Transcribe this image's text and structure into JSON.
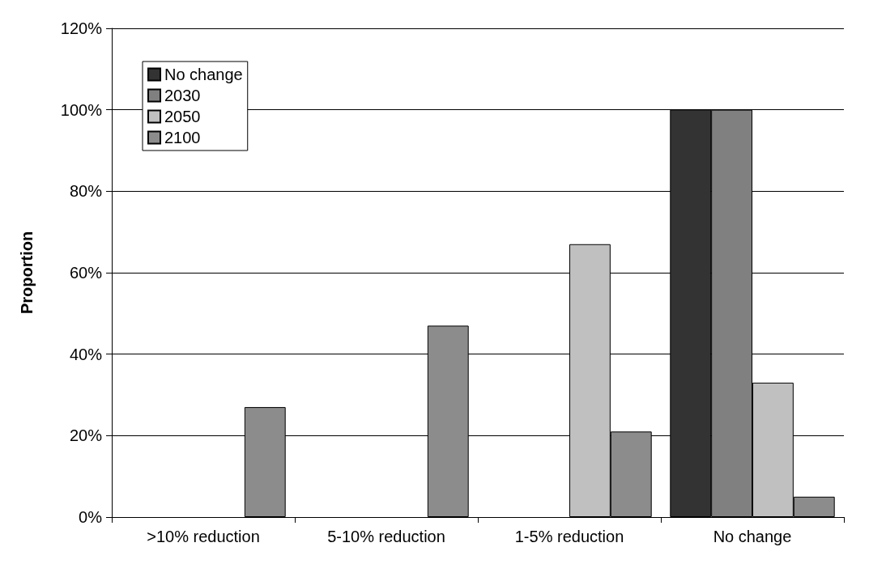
{
  "chart_data": {
    "type": "bar",
    "ylabel": "Proportion",
    "categories": [
      ">10% reduction",
      "5-10% reduction",
      "1-5% reduction",
      "No change"
    ],
    "series": [
      {
        "name": "No change",
        "color": "#333333",
        "values": [
          0,
          0,
          0,
          100
        ]
      },
      {
        "name": "2030",
        "color": "#808080",
        "values": [
          0,
          0,
          0,
          100
        ]
      },
      {
        "name": "2050",
        "color": "#c0c0c0",
        "values": [
          0,
          0,
          67,
          33
        ]
      },
      {
        "name": "2100",
        "color": "#8c8c8c",
        "values": [
          27,
          47,
          21,
          5
        ]
      }
    ],
    "ylim": [
      0,
      120
    ],
    "yticks": [
      {
        "value": 0,
        "label": "0%"
      },
      {
        "value": 20,
        "label": "20%"
      },
      {
        "value": 40,
        "label": "40%"
      },
      {
        "value": 60,
        "label": "60%"
      },
      {
        "value": 80,
        "label": "80%"
      },
      {
        "value": 100,
        "label": "100%"
      },
      {
        "value": 120,
        "label": "120%"
      }
    ],
    "grid": "y",
    "legend": "top left"
  }
}
